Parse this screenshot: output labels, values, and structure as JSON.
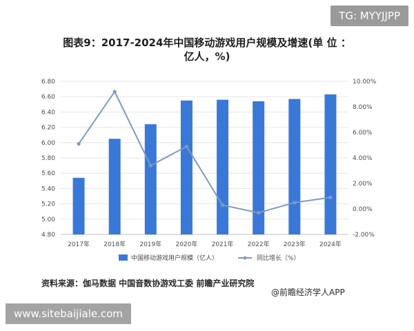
{
  "badges": {
    "top_right": "TG: MYYJJPP",
    "bottom_left": "www.sitebaijiale.com"
  },
  "title_line1": "图表9：2017-2024年中国移动游戏用户规模及增速(单 位 ：",
  "title_line2": "亿人，%)",
  "source": "资料来源：伽马数据 中国音数协游戏工委 前瞻产业研究院",
  "credit": "@前瞻经济学人APP",
  "colors": {
    "bar": "#3a78d8",
    "line": "#7d9ac2",
    "grid": "#e6e6e6"
  },
  "chart_data": {
    "type": "bar",
    "categories": [
      "2017年",
      "2018年",
      "2019年",
      "2020年",
      "2021年",
      "2022年",
      "2023年",
      "2024年"
    ],
    "series": [
      {
        "name": "中国移动游戏用户规模（亿人）",
        "type": "bar",
        "axis": "left",
        "values": [
          5.54,
          6.05,
          6.24,
          6.55,
          6.56,
          6.54,
          6.57,
          6.63
        ]
      },
      {
        "name": "同比增长（%）",
        "type": "line",
        "axis": "right",
        "values": [
          5.1,
          9.2,
          3.4,
          4.9,
          0.3,
          -0.3,
          0.5,
          0.9
        ]
      }
    ],
    "y_left": {
      "min": 4.8,
      "max": 6.8,
      "step": 0.2,
      "ticks": [
        "4.80",
        "5.00",
        "5.20",
        "5.40",
        "5.60",
        "5.80",
        "6.00",
        "6.20",
        "6.40",
        "6.60",
        "6.80"
      ]
    },
    "y_right": {
      "min": -2,
      "max": 10,
      "step": 2,
      "ticks": [
        "-2.00%",
        "0.00%",
        "2.00%",
        "4.00%",
        "6.00%",
        "8.00%",
        "10.00%"
      ]
    },
    "legend_position": "bottom",
    "grid": true
  }
}
